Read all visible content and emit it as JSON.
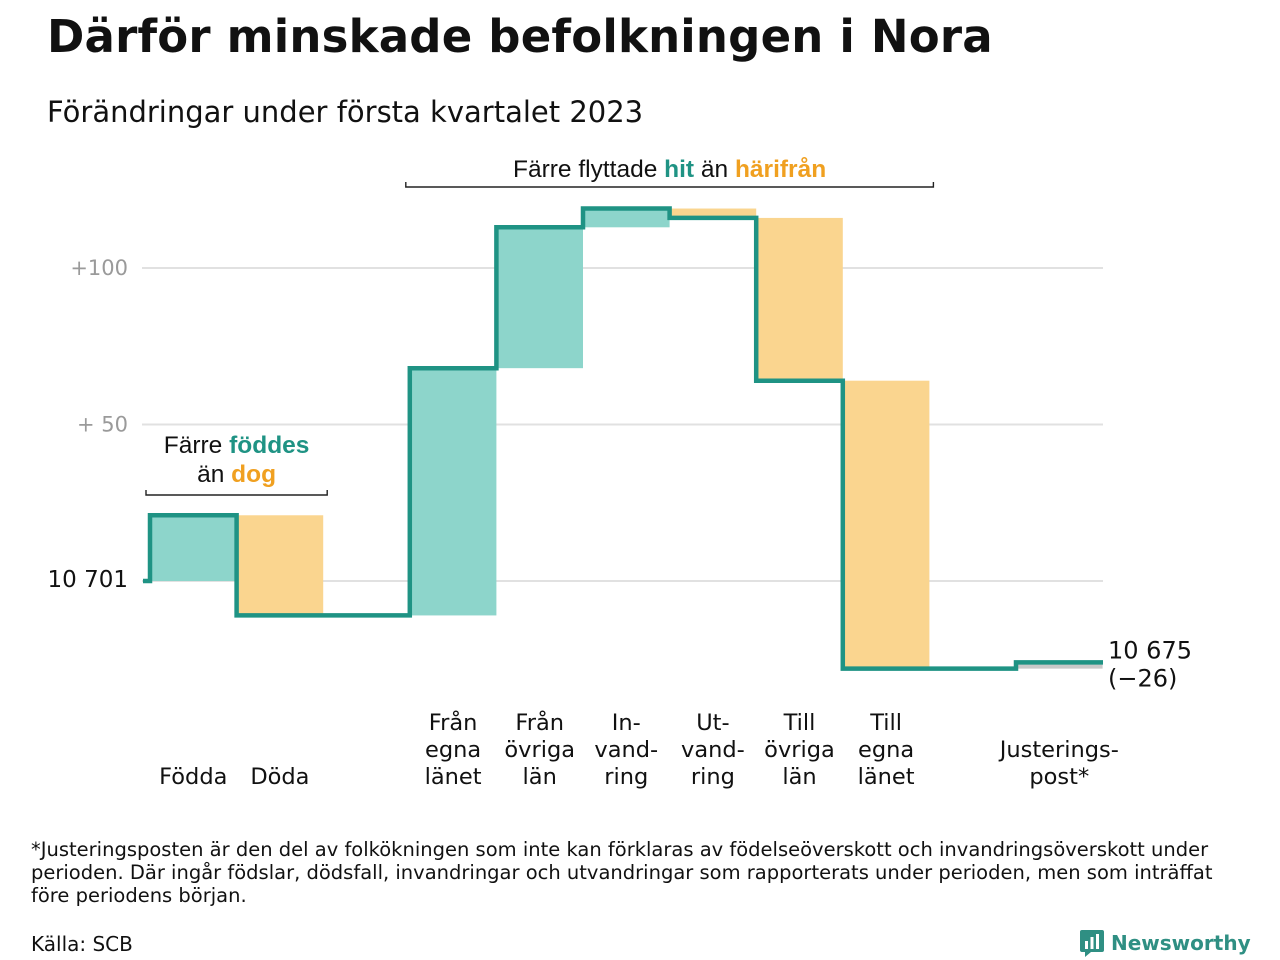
{
  "title": "Därför minskade befolkningen i Nora",
  "subtitle": "Förändringar under första kvartalet 2023",
  "colors": {
    "increase": "#8dd5cb",
    "decrease": "#fad58f",
    "line": "#1f9384",
    "adjustment": "#c8c8c8",
    "grid": "#e1e1e1",
    "tick": "#9a9a9a",
    "hit": "#1f9384",
    "harifran": "#f0a020"
  },
  "chart_data": {
    "type": "waterfall",
    "start_value": 10701,
    "start_label": "10 701",
    "end_value": 10675,
    "end_label": [
      "10 675",
      "(−26)"
    ],
    "yticks": [
      {
        "value": 10801,
        "label": "+100"
      },
      {
        "value": 10751,
        "label": "+ 50"
      },
      {
        "value": 10701,
        "label": ""
      }
    ],
    "steps": [
      {
        "label": [
          "",
          "",
          "Födda"
        ],
        "delta": 21,
        "kind": "increase"
      },
      {
        "label": [
          "",
          "",
          "Döda"
        ],
        "delta": -32,
        "kind": "decrease"
      },
      {
        "label": [
          "",
          "",
          ""
        ],
        "delta": 0,
        "kind": "spacer"
      },
      {
        "label": [
          "Från",
          "egna",
          "länet"
        ],
        "delta": 79,
        "kind": "increase"
      },
      {
        "label": [
          "Från",
          "övriga",
          "län"
        ],
        "delta": 45,
        "kind": "increase"
      },
      {
        "label": [
          "In-",
          "vand-",
          "ring"
        ],
        "delta": 6,
        "kind": "increase"
      },
      {
        "label": [
          "Ut-",
          "vand-",
          "ring"
        ],
        "delta": -3,
        "kind": "decrease"
      },
      {
        "label": [
          "Till",
          "övriga",
          "län"
        ],
        "delta": -52,
        "kind": "decrease"
      },
      {
        "label": [
          "Till",
          "egna",
          "länet"
        ],
        "delta": -92,
        "kind": "decrease"
      },
      {
        "label": [
          "",
          "",
          ""
        ],
        "delta": 0,
        "kind": "spacer"
      },
      {
        "label": [
          "",
          "Justerings-",
          "post*"
        ],
        "delta": 2,
        "kind": "adjustment"
      }
    ],
    "annotations": {
      "births": {
        "line1_pre": "Färre ",
        "line1_hl": "föddes",
        "line2_pre": "än ",
        "line2_hl": "dog"
      },
      "migration": {
        "pre": "Färre flyttade ",
        "hl1": "hit",
        "mid": " än ",
        "hl2": "härifrån"
      }
    }
  },
  "footnote": "*Justeringsposten är den del av folkökningen som inte kan förklaras av födelseöverskott och invandringsöverskott under perioden. Där ingår födslar, dödsfall, invandringar och utvandringar som rapporterats under perioden, men som inträffat före periodens början.",
  "source": "Källa: SCB",
  "brand": {
    "name": "Newsworthy",
    "icon": "newsworthy-logo-icon"
  }
}
